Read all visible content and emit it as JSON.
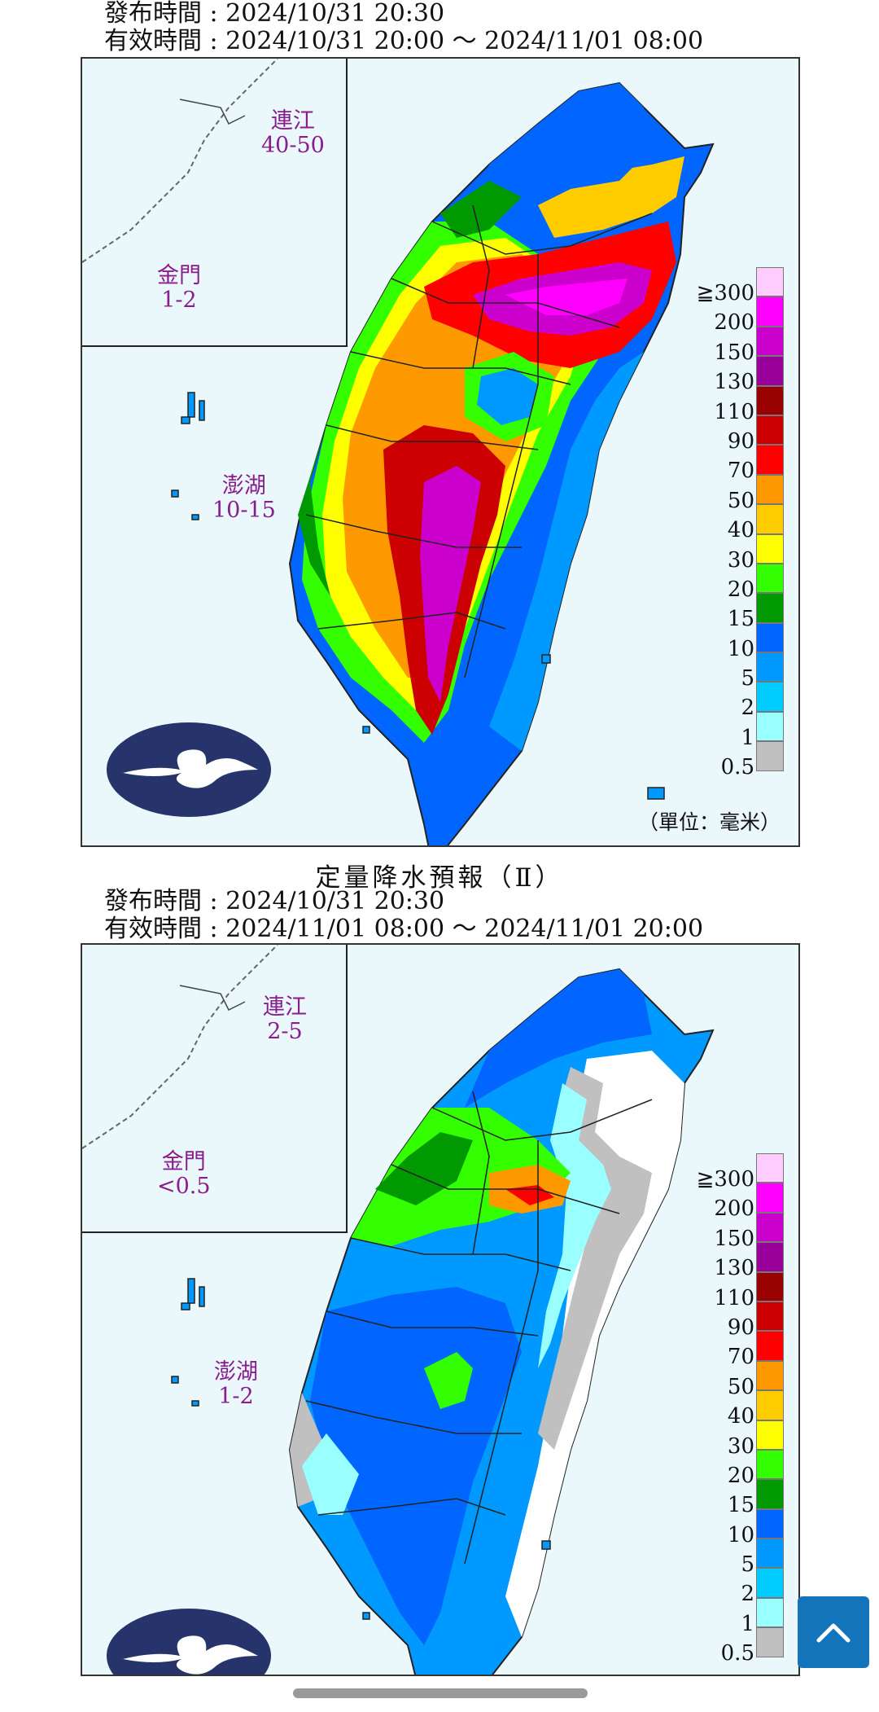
{
  "maps": [
    {
      "issued": "發布時間 : 2024/10/31 20:30",
      "valid": "有效時間 : 2024/10/31 20:00 ～ 2024/11/01 08:00",
      "islands": {
        "lienchiang_name": "連江",
        "lienchiang_value": "40-50",
        "kinmen_name": "金門",
        "kinmen_value": "1-2",
        "penghu_name": "澎湖",
        "penghu_value": "10-15"
      },
      "unit": "（單位：毫米）"
    },
    {
      "title": "定量降水預報（Ⅱ）",
      "issued": "發布時間 : 2024/10/31 20:30",
      "valid": "有效時間 : 2024/11/01 08:00 ～ 2024/11/01 20:00",
      "islands": {
        "lienchiang_name": "連江",
        "lienchiang_value": "2-5",
        "kinmen_name": "金門",
        "kinmen_value": "<0.5",
        "penghu_name": "澎湖",
        "penghu_value": "1-2"
      }
    }
  ],
  "legend": {
    "labels": [
      "≧300",
      "200",
      "150",
      "130",
      "110",
      "90",
      "70",
      "50",
      "40",
      "30",
      "20",
      "15",
      "10",
      "5",
      "2",
      "1",
      "0.5"
    ],
    "colors": [
      "#ffccff",
      "#ff00ff",
      "#cc00cc",
      "#990099",
      "#990000",
      "#cc0000",
      "#ff0000",
      "#ff9900",
      "#ffcc00",
      "#ffff00",
      "#33ff00",
      "#009900",
      "#0066ff",
      "#0099ff",
      "#00ccff",
      "#99ffff",
      "#c0c0c0"
    ]
  },
  "scroll_top_icon": "chevron-up-icon"
}
